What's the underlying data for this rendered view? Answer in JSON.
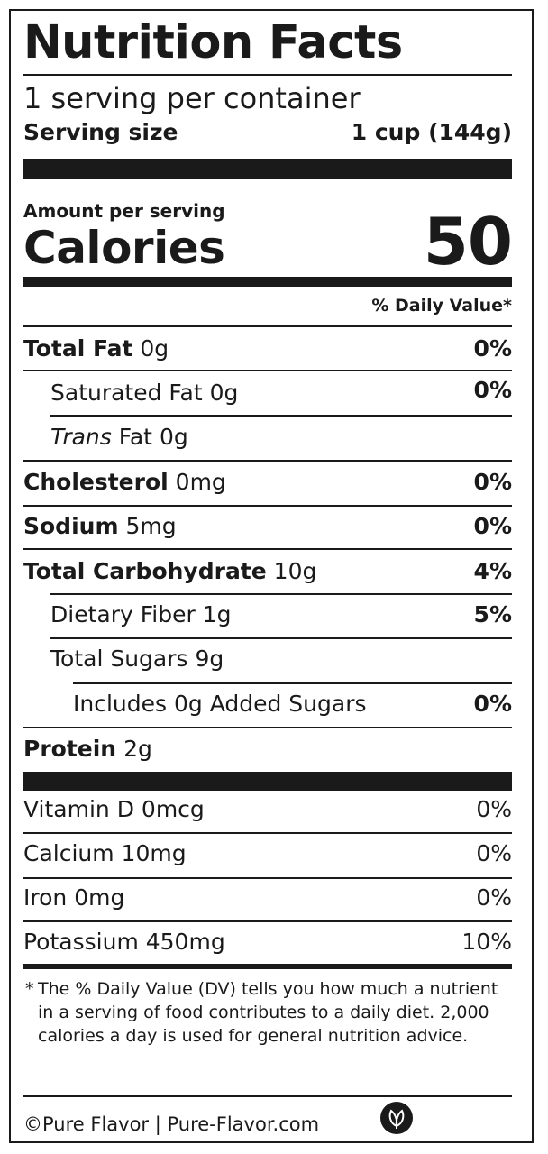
{
  "title": "Nutrition Facts",
  "servings_per_container": "1 serving per container",
  "serving_size": {
    "label": "Serving size",
    "value": "1 cup (144g)"
  },
  "amount_per_serving": "Amount per serving",
  "calories": {
    "label": "Calories",
    "value": "50"
  },
  "daily_value_header": "% Daily Value*",
  "nutrients": [
    {
      "name": "Total Fat",
      "amount": "0g",
      "dv": "0%"
    },
    {
      "name": "Saturated Fat",
      "amount": "0g",
      "dv": "0%"
    },
    {
      "name_italic": "Trans",
      "name": "Fat",
      "amount": "0g",
      "dv": ""
    },
    {
      "name": "Cholesterol",
      "amount": "0mg",
      "dv": "0%"
    },
    {
      "name": "Sodium",
      "amount": "5mg",
      "dv": "0%"
    },
    {
      "name": "Total Carbohydrate",
      "amount": "10g",
      "dv": "4%"
    },
    {
      "name": "Dietary Fiber",
      "amount": "1g",
      "dv": "5%"
    },
    {
      "name": "Total Sugars",
      "amount": "9g",
      "dv": ""
    },
    {
      "text": "Includes 0g Added Sugars",
      "dv": "0%"
    },
    {
      "name": "Protein",
      "amount": "2g",
      "dv": ""
    }
  ],
  "vitamins": [
    {
      "text": "Vitamin D 0mcg",
      "dv": "0%"
    },
    {
      "text": "Calcium 10mg",
      "dv": "0%"
    },
    {
      "text": "Iron 0mg",
      "dv": "0%"
    },
    {
      "text": "Potassium 450mg",
      "dv": "10%"
    }
  ],
  "footnote": {
    "star": "*",
    "text": "The % Daily Value (DV) tells you how much a nutrient in a serving of food contributes to a daily diet. 2,000 calories a day is used for general nutrition advice."
  },
  "brand_line": "©Pure Flavor | Pure-Flavor.com",
  "logo_icon": "leaf-icon",
  "colors": {
    "ink": "#1a1a1a",
    "background": "#ffffff"
  }
}
